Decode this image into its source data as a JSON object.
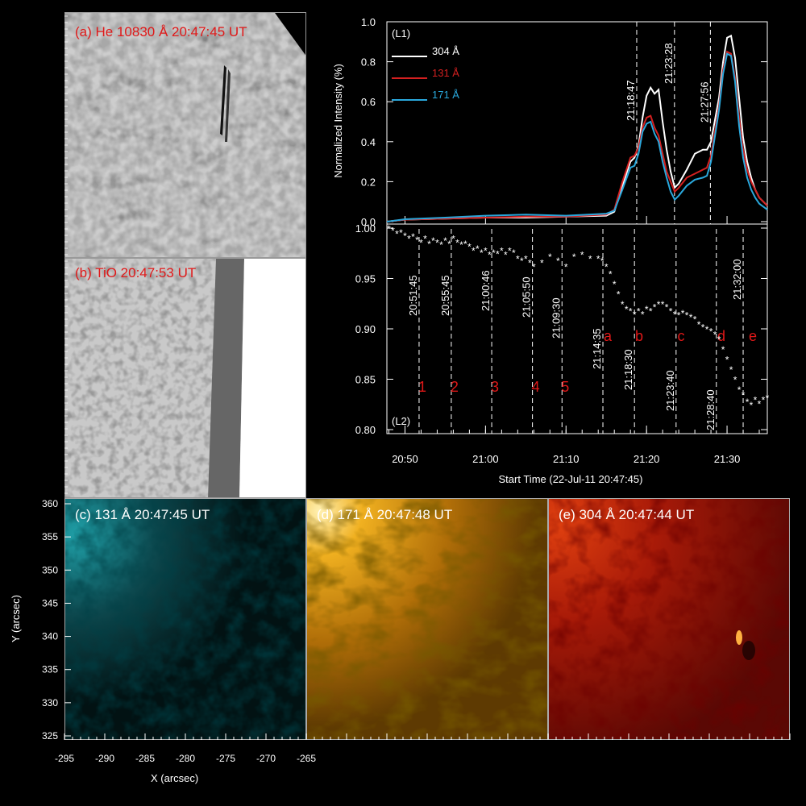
{
  "colors": {
    "label_red": "#e01818",
    "label_white": "#ffffff",
    "c304": "#ffffff",
    "c131": "#d42020",
    "c171": "#2aa8dc",
    "marker_red": "#e01818"
  },
  "panels": {
    "a": {
      "label": "(a) He 10830 Å 20:47:45 UT"
    },
    "b": {
      "label": "(b) TiO 20:47:53 UT"
    },
    "c": {
      "label": "(c) 131 Å 20:47:45 UT"
    },
    "d": {
      "label": "(d) 171 Å 20:47:48 UT"
    },
    "e": {
      "label": "(e) 304 Å 20:47:44 UT"
    }
  },
  "map_axes": {
    "xlabel": "X (arcsec)",
    "ylabel": "Y (arcsec)",
    "xticks": [
      "-295",
      "-290",
      "-285",
      "-280",
      "-275",
      "-270",
      "-265"
    ],
    "yticks": [
      "360",
      "355",
      "350",
      "345",
      "340",
      "335",
      "330",
      "325"
    ]
  },
  "chart_data": [
    {
      "type": "line",
      "tag": "(L1)",
      "ylabel": "Normalized Intensity (%)",
      "yticks": [
        "0.0",
        "0.2",
        "0.4",
        "0.6",
        "0.8",
        "1.0"
      ],
      "ylim": [
        0,
        1.0
      ],
      "xlim_minutes_from_2050": [
        -2.25,
        45
      ],
      "series": [
        {
          "name": "304 Å",
          "color": "#ffffff",
          "x": [
            -2.25,
            0,
            5,
            10,
            15,
            20,
            25,
            26,
            27,
            28,
            28.5,
            29,
            29.5,
            30,
            30.5,
            31,
            31.5,
            32,
            32.5,
            33,
            33.5,
            34,
            35,
            36,
            37,
            37.5,
            38,
            39,
            39.5,
            40,
            40.5,
            41,
            41.5,
            42,
            42.5,
            43,
            43.5,
            44,
            45
          ],
          "y": [
            0.0,
            0.01,
            0.015,
            0.02,
            0.02,
            0.025,
            0.03,
            0.05,
            0.18,
            0.3,
            0.32,
            0.38,
            0.52,
            0.63,
            0.67,
            0.64,
            0.66,
            0.5,
            0.36,
            0.25,
            0.17,
            0.19,
            0.26,
            0.34,
            0.36,
            0.36,
            0.4,
            0.62,
            0.8,
            0.92,
            0.93,
            0.82,
            0.62,
            0.42,
            0.3,
            0.22,
            0.16,
            0.12,
            0.08
          ]
        },
        {
          "name": "131 Å",
          "color": "#d42020",
          "x": [
            -2.25,
            0,
            5,
            10,
            15,
            20,
            25,
            26,
            27,
            28,
            28.5,
            29,
            29.5,
            30,
            30.5,
            31,
            31.5,
            32,
            32.5,
            33,
            33.5,
            34,
            35,
            36,
            37,
            37.5,
            38,
            39,
            39.5,
            40,
            40.5,
            41,
            41.5,
            42,
            42.5,
            43,
            43.5,
            44,
            45
          ],
          "y": [
            0.0,
            0.01,
            0.015,
            0.02,
            0.025,
            0.025,
            0.035,
            0.06,
            0.2,
            0.32,
            0.33,
            0.37,
            0.47,
            0.52,
            0.53,
            0.47,
            0.43,
            0.34,
            0.25,
            0.2,
            0.15,
            0.17,
            0.22,
            0.24,
            0.26,
            0.27,
            0.33,
            0.58,
            0.76,
            0.85,
            0.84,
            0.72,
            0.52,
            0.36,
            0.26,
            0.2,
            0.16,
            0.12,
            0.08
          ]
        },
        {
          "name": "171 Å",
          "color": "#2aa8dc",
          "x": [
            -2.25,
            0,
            5,
            10,
            15,
            20,
            25,
            26,
            27,
            28,
            28.5,
            29,
            29.5,
            30,
            30.5,
            31,
            31.5,
            32,
            32.5,
            33,
            33.5,
            34,
            35,
            36,
            37,
            37.5,
            38,
            39,
            39.5,
            40,
            40.5,
            41,
            41.5,
            42,
            42.5,
            43,
            43.5,
            44,
            45
          ],
          "y": [
            0.0,
            0.012,
            0.02,
            0.03,
            0.035,
            0.03,
            0.04,
            0.055,
            0.16,
            0.27,
            0.28,
            0.34,
            0.45,
            0.49,
            0.5,
            0.44,
            0.4,
            0.3,
            0.22,
            0.15,
            0.11,
            0.13,
            0.18,
            0.21,
            0.22,
            0.23,
            0.3,
            0.56,
            0.74,
            0.84,
            0.83,
            0.7,
            0.48,
            0.32,
            0.22,
            0.16,
            0.12,
            0.09,
            0.06
          ]
        }
      ],
      "markers": [
        {
          "t": 28.78,
          "label": "21:18:47"
        },
        {
          "t": 33.47,
          "label": "21:23:28"
        },
        {
          "t": 37.93,
          "label": "21:27:56"
        }
      ]
    },
    {
      "type": "scatter",
      "tag": "(L2)",
      "yticks": [
        "1.00",
        "0.95",
        "0.90",
        "0.85",
        "0.80"
      ],
      "ylim": [
        0.8,
        1.005
      ],
      "xlabel": "Start Time (22-Jul-11 20:47:45)",
      "xticks": [
        "20:50",
        "21:00",
        "21:10",
        "21:20",
        "21:30"
      ],
      "points": {
        "x": [
          -2,
          -1.5,
          -1,
          -0.5,
          0,
          0.5,
          1,
          1.5,
          2,
          2.5,
          3,
          3.5,
          4,
          4.5,
          5,
          5.5,
          6,
          6.5,
          7,
          7.5,
          8,
          8.5,
          9,
          9.5,
          10,
          10.5,
          11,
          11.5,
          12,
          12.5,
          13,
          13.5,
          14,
          14.5,
          15,
          15.5,
          16,
          17,
          18,
          19,
          20,
          21,
          22,
          23,
          24,
          24.5,
          25,
          25.5,
          26,
          26.5,
          27,
          27.5,
          28,
          28.5,
          29,
          29.5,
          30,
          30.5,
          31,
          31.5,
          32,
          32.5,
          33,
          33.5,
          34,
          34.5,
          35,
          35.5,
          36,
          36.5,
          37,
          37.5,
          38,
          38.5,
          39,
          39.5,
          40,
          40.5,
          41,
          41.5,
          42,
          42.5,
          43,
          43.5,
          44,
          44.5,
          45
        ],
        "y": [
          1.0,
          0.998,
          0.995,
          0.996,
          0.993,
          0.99,
          0.992,
          0.989,
          0.986,
          0.99,
          0.985,
          0.988,
          0.986,
          0.984,
          0.988,
          0.985,
          0.99,
          0.986,
          0.984,
          0.985,
          0.982,
          0.978,
          0.98,
          0.976,
          0.978,
          0.974,
          0.976,
          0.975,
          0.978,
          0.974,
          0.978,
          0.976,
          0.97,
          0.968,
          0.97,
          0.966,
          0.962,
          0.966,
          0.972,
          0.968,
          0.962,
          0.972,
          0.974,
          0.97,
          0.97,
          0.968,
          0.962,
          0.955,
          0.945,
          0.935,
          0.925,
          0.92,
          0.918,
          0.915,
          0.918,
          0.915,
          0.92,
          0.918,
          0.922,
          0.925,
          0.925,
          0.922,
          0.918,
          0.915,
          0.914,
          0.916,
          0.914,
          0.912,
          0.91,
          0.905,
          0.902,
          0.9,
          0.898,
          0.895,
          0.89,
          0.88,
          0.87,
          0.86,
          0.85,
          0.84,
          0.835,
          0.828,
          0.825,
          0.83,
          0.826,
          0.83,
          0.832
        ]
      },
      "markers": [
        {
          "t": 1.75,
          "label": "20:51:45",
          "num": "1"
        },
        {
          "t": 5.75,
          "label": "20:55:45",
          "num": "2"
        },
        {
          "t": 10.77,
          "label": "21:00:46",
          "num": "3"
        },
        {
          "t": 15.83,
          "label": "21:05:50",
          "num": "4"
        },
        {
          "t": 19.5,
          "label": "21:09:30",
          "num": "5"
        },
        {
          "t": 24.58,
          "label": "21:14:35",
          "num": ""
        },
        {
          "t": 28.5,
          "label": "21:18:30",
          "num": ""
        },
        {
          "t": 33.67,
          "label": "21:23:40",
          "num": ""
        },
        {
          "t": 38.67,
          "label": "21:28:40",
          "num": ""
        },
        {
          "t": 42.0,
          "label": "21:32:00",
          "num": ""
        }
      ],
      "letters": [
        "a",
        "b",
        "c",
        "d",
        "e"
      ]
    }
  ]
}
